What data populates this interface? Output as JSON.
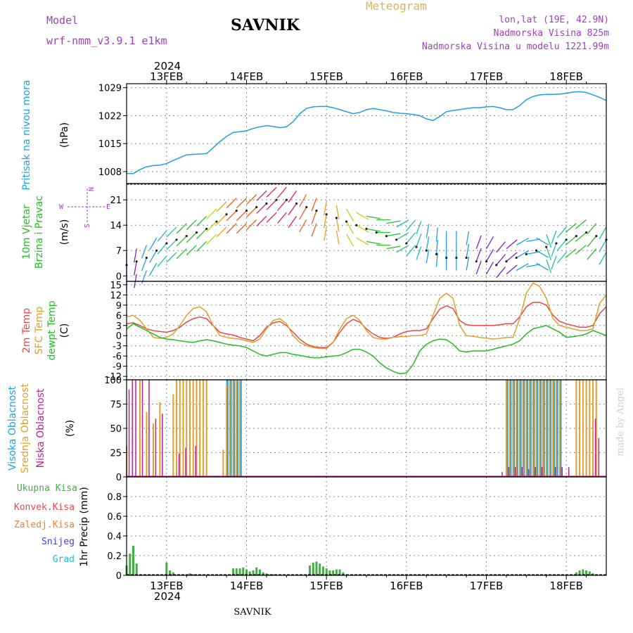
{
  "header": {
    "model_label": "Model",
    "model_name": "wrf-nmm_v3.9.1 e1km",
    "station": "SAVNIK",
    "product": "Meteogram",
    "lonlat": "lon,lat (19E, 42.9N)",
    "altitude": "Nadmorska Visina 825m",
    "model_altitude": "Nadmorska Visina u modelu 1221.99m",
    "footer_station": "SAVNIK",
    "watermark": "made by Angel"
  },
  "colors": {
    "pressure": "#1ea0e6",
    "wind_label": "#20c020",
    "temp2m": "#e84848",
    "sfc_temp": "#e0a030",
    "dewpt": "#20c020",
    "high_cloud": "#1ea0e6",
    "mid_cloud": "#e0a030",
    "low_cloud": "#c02090",
    "precip_total": "#40b040",
    "precip_conv": "#e84848",
    "precip_frozen": "#f08030",
    "precip_snow": "#4040e0",
    "precip_grad": "#20c0c0",
    "header_purple": "#a040c0",
    "header_orange": "#e0b060"
  },
  "time_axis": {
    "year": "2024",
    "days": [
      "13FEB",
      "14FEB",
      "15FEB",
      "16FEB",
      "17FEB",
      "18FEB"
    ],
    "start_hour": -12,
    "end_hour": 132
  },
  "chart_data": [
    {
      "type": "line",
      "name": "pressure",
      "ylabel": "Pritisak na nivou mora",
      "unit": "(hPa)",
      "ylim": [
        1005,
        1030
      ],
      "yticks": [
        "1008",
        "1015",
        "1022",
        "1029"
      ],
      "yticks_values": [
        1008,
        1015,
        1022,
        1029
      ],
      "x": [
        -12,
        -10,
        -8,
        -6,
        -4,
        -2,
        0,
        2,
        4,
        6,
        8,
        10,
        12,
        14,
        16,
        18,
        20,
        22,
        24,
        26,
        28,
        30,
        32,
        34,
        36,
        38,
        40,
        42,
        44,
        46,
        48,
        50,
        52,
        54,
        56,
        58,
        60,
        62,
        64,
        66,
        68,
        70,
        72,
        74,
        76,
        78,
        80,
        82,
        84,
        86,
        88,
        90,
        92,
        94,
        96,
        98,
        100,
        102,
        104,
        106,
        108,
        110,
        112,
        114,
        116,
        118,
        120,
        122,
        124,
        126,
        128,
        130,
        132
      ],
      "series": [
        {
          "values": [
            1007.5,
            1007.5,
            1008.5,
            1009.2,
            1009.5,
            1009.6,
            1010.0,
            1010.8,
            1011.5,
            1012.2,
            1012.3,
            1012.4,
            1012.5,
            1014.0,
            1015.5,
            1016.8,
            1017.8,
            1018.0,
            1018.2,
            1018.8,
            1019.2,
            1019.5,
            1019.3,
            1019.0,
            1019.2,
            1020.5,
            1022.5,
            1023.8,
            1024.2,
            1024.3,
            1024.3,
            1024.0,
            1023.5,
            1023.0,
            1022.5,
            1022.8,
            1023.5,
            1023.8,
            1023.5,
            1023.2,
            1022.8,
            1022.6,
            1022.5,
            1022.3,
            1022.0,
            1021.2,
            1020.8,
            1021.8,
            1023.0,
            1023.3,
            1023.5,
            1023.8,
            1024.0,
            1024.0,
            1024.2,
            1024.3,
            1024.0,
            1023.5,
            1023.5,
            1024.5,
            1026.0,
            1026.8,
            1027.2,
            1027.3,
            1027.3,
            1027.4,
            1027.6,
            1027.9,
            1028.0,
            1027.8,
            1027.2,
            1026.6,
            1025.8
          ]
        }
      ]
    },
    {
      "type": "scatter",
      "name": "wind",
      "ylabel_line1": "10m Vjetar",
      "ylabel_line2": "Brzina i Pravac",
      "unit": "(m/s)",
      "ylim": [
        -1.5,
        25.5
      ],
      "yticks": [
        "0",
        "7",
        "14",
        "21"
      ],
      "yticks_values": [
        0,
        7,
        14,
        21
      ],
      "compass": {
        "n": "N",
        "w": "W",
        "e": "E",
        "s": "S"
      },
      "x": [
        -12,
        -9,
        -6,
        -3,
        0,
        3,
        6,
        9,
        12,
        15,
        18,
        21,
        24,
        27,
        30,
        33,
        36,
        39,
        42,
        45,
        48,
        51,
        54,
        57,
        60,
        63,
        66,
        69,
        72,
        75,
        78,
        81,
        84,
        87,
        90,
        93,
        96,
        99,
        102,
        105,
        108,
        111,
        114,
        117,
        120,
        123,
        126,
        129,
        132
      ],
      "speed": [
        3,
        4,
        5,
        7,
        9,
        10,
        11,
        12,
        13,
        15,
        17,
        18,
        18,
        19,
        20,
        21,
        21,
        20,
        19,
        18,
        17,
        16,
        15,
        14,
        13,
        12,
        11,
        10,
        9,
        8,
        7,
        6,
        5,
        5,
        5,
        4,
        4,
        3,
        4,
        5,
        6,
        7,
        8,
        9,
        10,
        11,
        12,
        11,
        10
      ],
      "direction": [
        180,
        190,
        200,
        210,
        220,
        225,
        225,
        225,
        225,
        225,
        225,
        225,
        225,
        225,
        225,
        225,
        220,
        215,
        210,
        200,
        190,
        170,
        150,
        120,
        100,
        90,
        80,
        60,
        40,
        20,
        10,
        5,
        0,
        0,
        10,
        20,
        30,
        40,
        50,
        60,
        80,
        120,
        160,
        200,
        220,
        230,
        230,
        220,
        210
      ]
    },
    {
      "type": "line",
      "name": "temperature",
      "ylabel_line1": "2m Temp",
      "ylabel_line2": "SFC Temp",
      "ylabel_line3": "dewpt Temp",
      "unit": "(C)",
      "ylim": [
        -13,
        16
      ],
      "yticks": [
        "15",
        "12",
        "9",
        "6",
        "3",
        "0",
        "-3",
        "-6",
        "-9",
        "-12"
      ],
      "yticks_values": [
        15,
        12,
        9,
        6,
        3,
        0,
        -3,
        -6,
        -9,
        -12
      ],
      "x": [
        -12,
        -10,
        -8,
        -6,
        -4,
        -2,
        0,
        2,
        4,
        6,
        8,
        10,
        12,
        14,
        16,
        18,
        20,
        22,
        24,
        26,
        28,
        30,
        32,
        34,
        36,
        38,
        40,
        42,
        44,
        46,
        48,
        50,
        52,
        54,
        56,
        58,
        60,
        62,
        64,
        66,
        68,
        70,
        72,
        74,
        76,
        78,
        80,
        82,
        84,
        86,
        88,
        90,
        92,
        94,
        96,
        98,
        100,
        102,
        104,
        106,
        108,
        110,
        112,
        114,
        116,
        118,
        120,
        122,
        124,
        126,
        128,
        130,
        132
      ],
      "series": [
        {
          "name": "2m Temp",
          "values": [
            3.5,
            3.8,
            3.0,
            2.0,
            1.5,
            1.2,
            1.0,
            1.5,
            2.5,
            4.0,
            5.0,
            5.5,
            5.0,
            3.0,
            1.0,
            0.5,
            0.2,
            -0.5,
            -1.0,
            -1.5,
            0,
            2.5,
            3.8,
            4.2,
            3.0,
            1.0,
            -1.0,
            -2.5,
            -3.2,
            -3.5,
            -3.5,
            -2.0,
            1.0,
            3.5,
            4.8,
            4.0,
            2.0,
            0.5,
            -0.5,
            -0.8,
            -0.5,
            0.5,
            1.2,
            1.5,
            1.5,
            2.0,
            5.0,
            7.8,
            8.8,
            8.0,
            4.5,
            3.2,
            3.0,
            3.0,
            3.0,
            3.0,
            3.2,
            3.5,
            3.5,
            5.5,
            8.5,
            9.8,
            9.8,
            9.0,
            6.0,
            4.2,
            3.5,
            3.0,
            2.5,
            2.5,
            3.0,
            6.5,
            8.5
          ]
        },
        {
          "name": "SFC Temp",
          "values": [
            5.5,
            6.0,
            4.5,
            2.0,
            -0.5,
            -0.8,
            -0.5,
            0.5,
            3.0,
            6.0,
            8.0,
            8.5,
            7.0,
            3.0,
            0.0,
            -0.5,
            -0.8,
            -1.0,
            -1.5,
            -2.0,
            -1.0,
            2.0,
            4.5,
            5.0,
            3.5,
            0.0,
            -2.0,
            -3.0,
            -3.5,
            -3.8,
            -3.8,
            -2.0,
            2.0,
            5.0,
            6.0,
            4.5,
            1.5,
            -0.5,
            -1.0,
            -1.0,
            -0.5,
            -0.3,
            -0.2,
            0.0,
            0.0,
            0.5,
            6.0,
            11.0,
            12.5,
            11.0,
            3.0,
            0.0,
            -0.2,
            -0.5,
            -0.7,
            -1.0,
            -0.8,
            -0.5,
            -0.5,
            5.0,
            12.5,
            15.5,
            14.5,
            11.0,
            5.0,
            3.0,
            2.5,
            2.0,
            1.5,
            1.5,
            2.0,
            9.5,
            12.0
          ]
        },
        {
          "name": "dewpt Temp",
          "values": [
            2.0,
            3.5,
            2.5,
            1.5,
            0.5,
            -0.5,
            -1.0,
            -1.2,
            -1.5,
            -1.8,
            -2.0,
            -1.5,
            -1.2,
            -1.5,
            -2.0,
            -2.5,
            -2.8,
            -3.0,
            -3.5,
            -4.5,
            -5.5,
            -6.0,
            -5.5,
            -5.0,
            -5.0,
            -5.5,
            -5.8,
            -6.2,
            -6.5,
            -6.5,
            -6.2,
            -6.0,
            -5.8,
            -5.0,
            -4.0,
            -4.0,
            -4.8,
            -6.0,
            -8.0,
            -9.5,
            -10.5,
            -11.2,
            -11.0,
            -8.5,
            -4.5,
            -2.5,
            -1.5,
            -1.0,
            -1.2,
            -2.5,
            -4.5,
            -4.8,
            -4.5,
            -4.5,
            -4.5,
            -4.0,
            -3.5,
            -3.0,
            -2.5,
            -1.5,
            0.5,
            2.0,
            2.5,
            3.0,
            2.0,
            1.0,
            -0.5,
            -0.3,
            0.0,
            0.5,
            1.5,
            0.8,
            0.0
          ]
        }
      ]
    },
    {
      "type": "bar",
      "name": "cloud",
      "ylabel_line1": "Visoka Oblacnost",
      "ylabel_line2": "Srednja Oblacnost",
      "ylabel_line3": "Niska Oblacnost",
      "unit": "(%)",
      "ylim": [
        0,
        100
      ],
      "yticks": [
        "100",
        "75",
        "50",
        "25",
        "0"
      ],
      "yticks_values": [
        100,
        75,
        50,
        25,
        0
      ],
      "series": [
        {
          "name": "Visoka Oblacnost",
          "x": [
            18,
            19,
            20,
            21,
            22,
            102,
            103,
            104,
            105,
            106,
            107,
            108,
            109,
            110,
            111,
            112,
            113,
            114,
            115,
            116,
            117,
            118
          ],
          "values": [
            100,
            100,
            100,
            100,
            100,
            100,
            100,
            100,
            100,
            100,
            100,
            100,
            100,
            100,
            100,
            100,
            100,
            100,
            100,
            100,
            100,
            100
          ]
        },
        {
          "name": "Srednja Oblacnost",
          "x": [
            -12,
            -8,
            -6,
            -4,
            -2,
            2,
            3,
            4,
            5,
            6,
            7,
            8,
            9,
            10,
            11,
            12,
            17,
            18,
            19,
            20,
            21,
            22,
            102,
            103,
            104,
            105,
            106,
            107,
            108,
            109,
            110,
            111,
            112,
            113,
            114,
            115,
            116,
            117,
            118,
            123,
            124,
            125,
            126,
            127,
            128,
            129
          ],
          "values": [
            32,
            100,
            67,
            55,
            77,
            85,
            100,
            100,
            100,
            100,
            100,
            100,
            100,
            100,
            100,
            100,
            28,
            95,
            100,
            100,
            100,
            100,
            100,
            100,
            100,
            100,
            100,
            100,
            100,
            100,
            100,
            100,
            100,
            100,
            100,
            100,
            100,
            100,
            100,
            100,
            100,
            100,
            100,
            100,
            100,
            100
          ]
        },
        {
          "name": "Niska Oblacnost",
          "x": [
            -11,
            -10,
            -9,
            -7,
            -5,
            -3,
            -1,
            4,
            6,
            9,
            101,
            103,
            105,
            107,
            109,
            111,
            113,
            117,
            119,
            121,
            129,
            130
          ],
          "values": [
            90,
            100,
            100,
            100,
            100,
            60,
            65,
            24,
            30,
            32,
            5,
            10,
            10,
            10,
            8,
            10,
            10,
            10,
            10,
            10,
            60,
            40
          ]
        }
      ]
    },
    {
      "type": "bar",
      "name": "precip",
      "legend": [
        "Ukupna Kisa",
        "Konvek.Kisa",
        "Zaledj.Kisa",
        "Snijeg",
        "Grad"
      ],
      "ylabel": "1hr Precip (mm)",
      "ylim": [
        0,
        1
      ],
      "yticks": [
        "0.8",
        "0.6",
        "0.4",
        "0.2",
        "0"
      ],
      "yticks_values": [
        0.8,
        0.6,
        0.4,
        0.2,
        0
      ],
      "x": [
        -12,
        -11,
        -10,
        -9,
        0,
        1,
        2,
        7,
        8,
        20,
        21,
        22,
        23,
        24,
        25,
        26,
        27,
        28,
        29,
        30,
        31,
        32,
        43,
        44,
        45,
        46,
        47,
        48,
        49,
        50,
        51,
        52,
        53,
        54,
        123,
        124,
        125,
        126,
        127,
        128
      ],
      "values": [
        0.1,
        0.22,
        0.3,
        0.12,
        0.13,
        0.05,
        0.03,
        0.02,
        0.01,
        0.07,
        0.07,
        0.07,
        0.08,
        0.06,
        0.04,
        0.05,
        0.08,
        0.06,
        0.03,
        0.02,
        0.01,
        0.01,
        0.1,
        0.13,
        0.14,
        0.12,
        0.09,
        0.07,
        0.05,
        0.05,
        0.06,
        0.06,
        0.03,
        0.01,
        0.03,
        0.05,
        0.06,
        0.05,
        0.04,
        0.02
      ]
    }
  ]
}
